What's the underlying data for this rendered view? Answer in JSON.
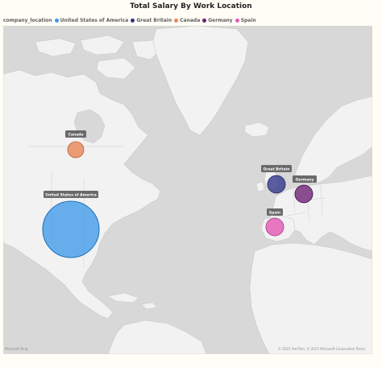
{
  "title": "Total Salary By Work Location",
  "legend": {
    "title": "company_location",
    "items": [
      {
        "label": "United States of America",
        "color": "#3d9be9"
      },
      {
        "label": "Great Britain",
        "color": "#2d3389"
      },
      {
        "label": "Canada",
        "color": "#e8895a"
      },
      {
        "label": "Germany",
        "color": "#6b1f75"
      },
      {
        "label": "Spain",
        "color": "#e35bb6"
      }
    ]
  },
  "map_labels": {
    "usa": "United States of America",
    "canada": "Canada",
    "great_britain": "Great Britain",
    "germany": "Germany",
    "spain": "Spain"
  },
  "footer": {
    "left": "Microsoft Bing",
    "right": "© 2023 TomTom, © 2023 Microsoft Corporation  Terms"
  },
  "colors": {
    "ocean": "#d8d8d8",
    "land": "#f2f2f2",
    "border": "#b8b8b8"
  }
}
